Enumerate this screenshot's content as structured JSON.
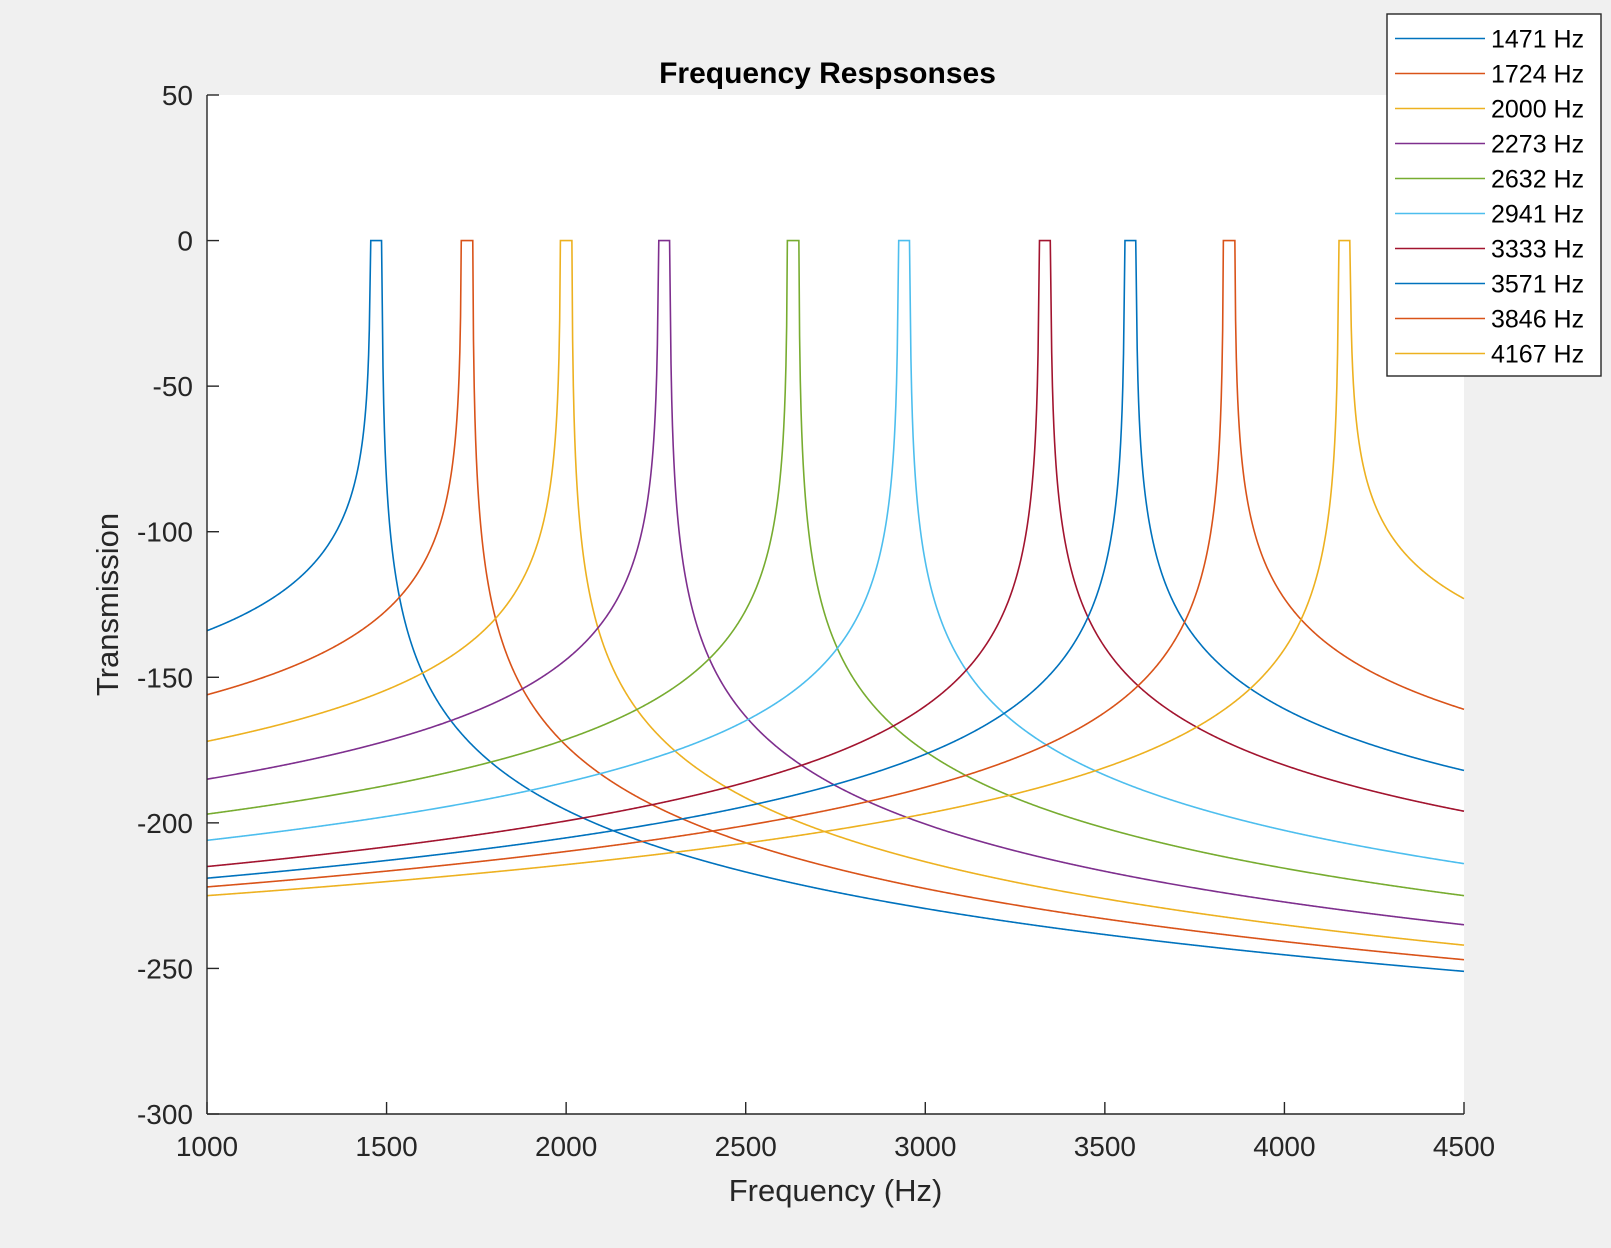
{
  "chart_data": {
    "type": "line",
    "title": "Frequency Respsonses",
    "xlabel": "Frequency (Hz)",
    "ylabel": "Transmission",
    "xlim": [
      1000,
      4500
    ],
    "ylim": [
      -300,
      50
    ],
    "xticks": [
      1000,
      1500,
      2000,
      2500,
      3000,
      3500,
      4000,
      4500
    ],
    "yticks": [
      50,
      0,
      -50,
      -100,
      -150,
      -200,
      -250,
      -300
    ],
    "grid": false,
    "legend_position": "top-right",
    "series": [
      {
        "name": "1471 Hz",
        "color": "#0072bd",
        "center": 1471,
        "y_at_1000": -134,
        "y_at_4500": -251
      },
      {
        "name": "1724 Hz",
        "color": "#d95319",
        "center": 1724,
        "y_at_1000": -156,
        "y_at_4500": -247
      },
      {
        "name": "2000 Hz",
        "color": "#edb120",
        "center": 2000,
        "y_at_1000": -172,
        "y_at_4500": -242
      },
      {
        "name": "2273 Hz",
        "color": "#7e2f8e",
        "center": 2273,
        "y_at_1000": -185,
        "y_at_4500": -235
      },
      {
        "name": "2632 Hz",
        "color": "#77ac30",
        "center": 2632,
        "y_at_1000": -197,
        "y_at_4500": -225
      },
      {
        "name": "2941 Hz",
        "color": "#4dbeee",
        "center": 2941,
        "y_at_1000": -206,
        "y_at_4500": -214
      },
      {
        "name": "3333 Hz",
        "color": "#a2142f",
        "center": 3333,
        "y_at_1000": -215,
        "y_at_4500": -196
      },
      {
        "name": "3571 Hz",
        "color": "#0072bd",
        "center": 3571,
        "y_at_1000": -219,
        "y_at_4500": -182
      },
      {
        "name": "3846 Hz",
        "color": "#d95319",
        "center": 3846,
        "y_at_1000": -222,
        "y_at_4500": -161
      },
      {
        "name": "4167 Hz",
        "color": "#edb120",
        "center": 4167,
        "y_at_1000": -225,
        "y_at_4500": -123
      }
    ]
  }
}
